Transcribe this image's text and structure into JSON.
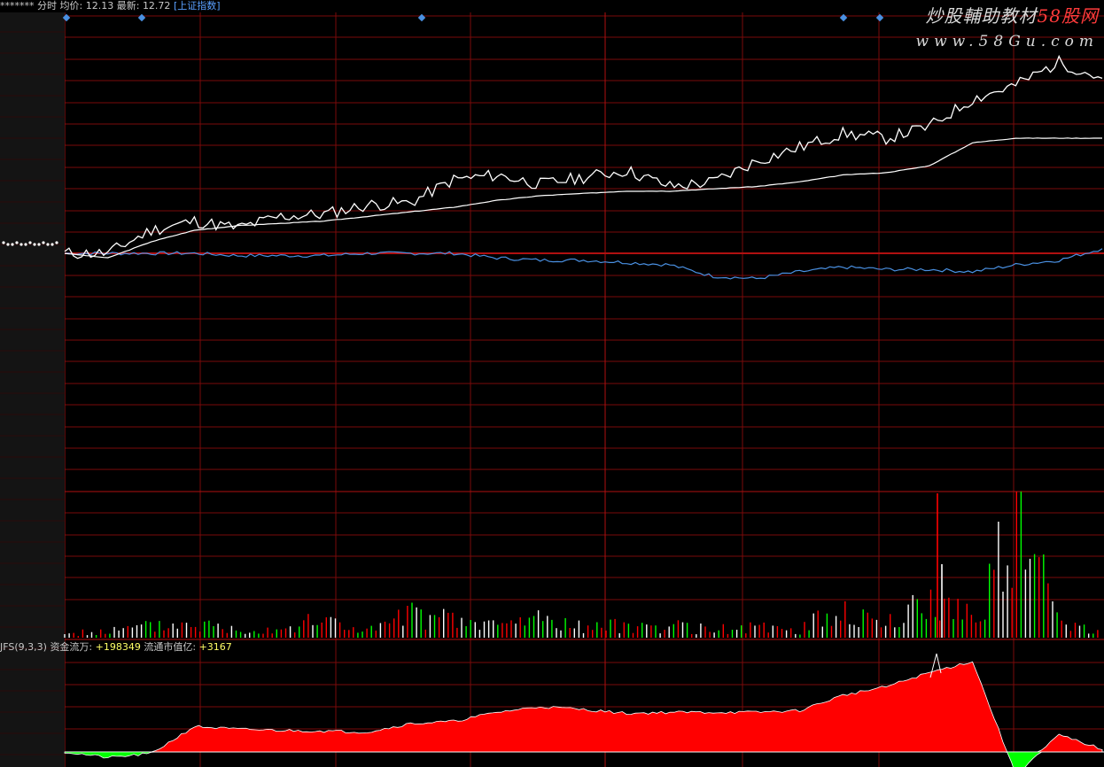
{
  "header": {
    "stock_name": "*******",
    "mode": "分时",
    "avg_label": "均价:",
    "avg_value": "12.13",
    "latest_label": "最新:",
    "latest_value": "12.72",
    "index_link": "[上证指数]"
  },
  "watermark": {
    "line1_text": "炒股輔助教材",
    "line1_brand": "58股网",
    "line2": "www.58Gu.com"
  },
  "indicator": {
    "name": "JFS(9,3,3)",
    "fund_label": "资金流万:",
    "fund_value": "+198349",
    "cap_label": "流通市值亿:",
    "cap_value": "+3167"
  },
  "colors": {
    "background": "#000000",
    "grid": "#7a0a0a",
    "price_line": "#ffffff",
    "avg_line": "#ffffff",
    "index_line": "#4a90e2",
    "up": "#ff0000",
    "down": "#00ff00",
    "marker": "#4a90e2"
  },
  "chart_data": [
    {
      "type": "line",
      "x": [
        0,
        10,
        20,
        30,
        40,
        50,
        60,
        70,
        80,
        90,
        100,
        110,
        120,
        130,
        140,
        150,
        160,
        170,
        180,
        190,
        200,
        210,
        220,
        230,
        240
      ],
      "series": [
        {
          "values": [
            0,
            0,
            1.0,
            1.4,
            1.1,
            1.6,
            1.7,
            2.1,
            2.2,
            3.2,
            3.4,
            3.0,
            3.3,
            3.6,
            2.9,
            3.1,
            4.0,
            4.6,
            5.2,
            5.0,
            5.5,
            6.7,
            7.3,
            8.3,
            7.6
          ]
        },
        {
          "values": [
            0,
            -0.2,
            0.5,
            1.0,
            1.2,
            1.3,
            1.4,
            1.6,
            1.8,
            2.0,
            2.3,
            2.5,
            2.6,
            2.7,
            2.7,
            2.8,
            2.9,
            3.1,
            3.4,
            3.5,
            3.8,
            4.8,
            5.0,
            5.0,
            5.0
          ]
        },
        {
          "values": [
            0,
            0,
            0,
            0,
            -0.1,
            -0.1,
            -0.1,
            0,
            0,
            0,
            -0.2,
            -0.3,
            -0.3,
            -0.4,
            -0.5,
            -1.0,
            -1.1,
            -0.8,
            -0.6,
            -0.7,
            -0.7,
            -0.8,
            -0.5,
            -0.3,
            0.2
          ]
        }
      ]
    },
    {
      "type": "bar",
      "x": [
        0,
        10,
        20,
        30,
        40,
        50,
        60,
        70,
        80,
        90,
        100,
        110,
        120,
        130,
        140,
        150,
        160,
        170,
        180,
        190,
        200,
        210,
        220,
        230,
        240
      ],
      "values": [
        5,
        8,
        14,
        18,
        10,
        12,
        22,
        8,
        28,
        20,
        15,
        25,
        12,
        15,
        14,
        10,
        12,
        10,
        36,
        15,
        45,
        30,
        160,
        20,
        12
      ]
    },
    {
      "type": "area",
      "x": [
        0,
        10,
        20,
        30,
        40,
        50,
        60,
        70,
        80,
        90,
        100,
        110,
        120,
        130,
        140,
        150,
        160,
        170,
        180,
        190,
        200,
        210,
        220,
        230,
        240
      ],
      "values": [
        0,
        -1.0,
        -0.3,
        4.5,
        4.0,
        3.8,
        3.7,
        3.5,
        5.0,
        5.4,
        7.0,
        8.0,
        7.5,
        6.8,
        7.0,
        7.0,
        7.0,
        7.3,
        10,
        11.5,
        14,
        16,
        -4,
        3.0,
        0.5
      ],
      "ylim": [
        -5,
        18
      ]
    }
  ]
}
